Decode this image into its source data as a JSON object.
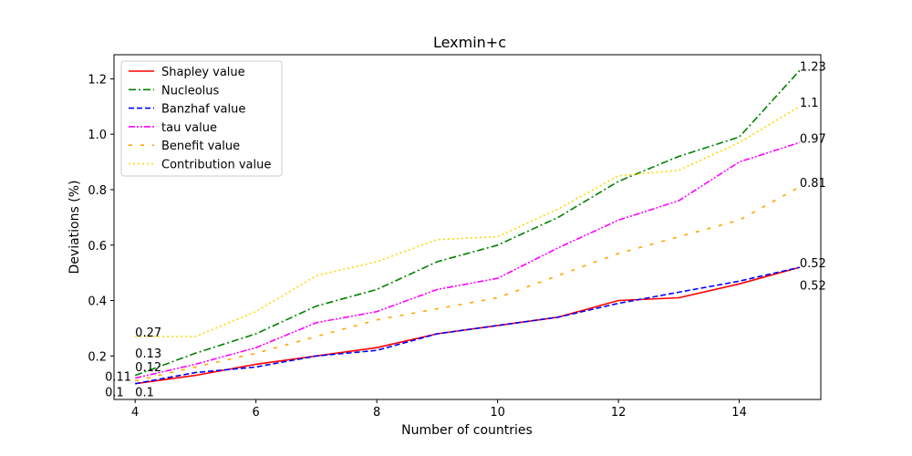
{
  "chart_data": {
    "type": "line",
    "title": "Lexmin+c",
    "xlabel": "Number of countries",
    "ylabel": "Deviations (%)",
    "xlim": [
      3.65,
      15.35
    ],
    "ylim": [
      0.043,
      1.287
    ],
    "xticks": [
      4,
      6,
      8,
      10,
      12,
      14
    ],
    "yticks": [
      0.2,
      0.4,
      0.6,
      0.8,
      1.0,
      1.2
    ],
    "ytick_labels": [
      "0.2",
      "0.4",
      "0.6",
      "0.8",
      "1.0",
      "1.2"
    ],
    "legend_position": "top-left",
    "grid": false,
    "x": [
      4,
      5,
      6,
      7,
      8,
      9,
      10,
      11,
      12,
      13,
      14,
      15
    ],
    "series": [
      {
        "name": "Shapley value",
        "color": "#ff0000",
        "style": "solid",
        "values": [
          0.1,
          0.13,
          0.17,
          0.2,
          0.23,
          0.28,
          0.31,
          0.34,
          0.4,
          0.41,
          0.46,
          0.52
        ]
      },
      {
        "name": "Nucleolus",
        "color": "#008000",
        "style": "dashdot",
        "values": [
          0.13,
          0.21,
          0.28,
          0.38,
          0.44,
          0.54,
          0.6,
          0.7,
          0.83,
          0.92,
          0.99,
          1.23
        ]
      },
      {
        "name": "Banzhaf value",
        "color": "#0000ff",
        "style": "dashed",
        "values": [
          0.1,
          0.14,
          0.16,
          0.2,
          0.22,
          0.28,
          0.31,
          0.34,
          0.39,
          0.43,
          0.47,
          0.52
        ]
      },
      {
        "name": "tau value",
        "color": "#ff00ff",
        "style": "dashdotdot",
        "values": [
          0.12,
          0.17,
          0.23,
          0.32,
          0.36,
          0.44,
          0.48,
          0.59,
          0.69,
          0.76,
          0.9,
          0.97
        ]
      },
      {
        "name": "Benefit value",
        "color": "#ffa500",
        "style": "loosedash",
        "values": [
          0.11,
          0.16,
          0.21,
          0.27,
          0.33,
          0.37,
          0.41,
          0.49,
          0.57,
          0.63,
          0.69,
          0.81
        ]
      },
      {
        "name": "Contribution value",
        "color": "#ffd700",
        "style": "dotted",
        "values": [
          0.27,
          0.27,
          0.36,
          0.49,
          0.54,
          0.62,
          0.63,
          0.73,
          0.85,
          0.87,
          0.97,
          1.1
        ]
      }
    ],
    "annotations": [
      {
        "text": "1.23",
        "x": 15,
        "y": 1.23
      },
      {
        "text": "1.1",
        "x": 15,
        "y": 1.1
      },
      {
        "text": "0.97",
        "x": 15,
        "y": 0.97
      },
      {
        "text": "0.81",
        "x": 15,
        "y": 0.81
      },
      {
        "text": "0.52",
        "x": 15,
        "y": 0.52
      },
      {
        "text": "0.52",
        "x": 15,
        "y": 0.44
      },
      {
        "text": "0.27",
        "x": 4,
        "y": 0.27
      },
      {
        "text": "0.13",
        "x": 4,
        "y": 0.195
      },
      {
        "text": "0.12",
        "x": 4,
        "y": 0.145
      },
      {
        "text": "0.11",
        "x": 3.5,
        "y": 0.11
      },
      {
        "text": "0.1",
        "x": 3.5,
        "y": 0.055
      },
      {
        "text": "0.1",
        "x": 4,
        "y": 0.055
      }
    ]
  }
}
